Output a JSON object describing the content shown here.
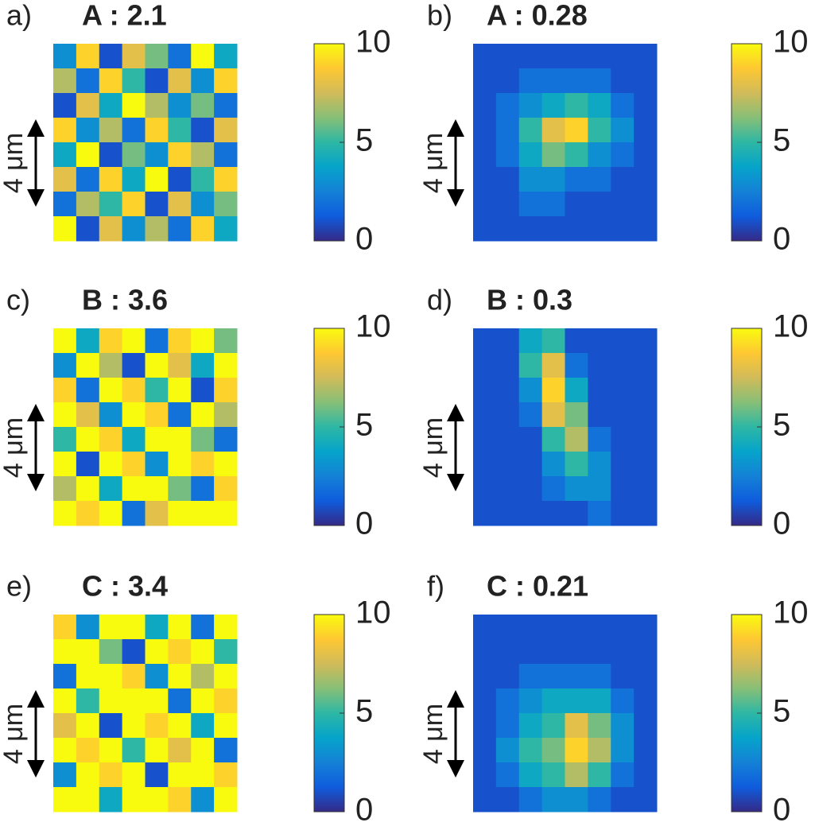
{
  "chart_data": [
    {
      "type": "heatmap",
      "panel_label": "a)",
      "title": "A : 2.1",
      "scale_label": "4 μm",
      "zlim": [
        0,
        10
      ],
      "zticks": [
        0,
        5,
        10
      ],
      "values": [
        [
          3,
          9,
          1,
          8,
          6,
          2,
          10,
          4
        ],
        [
          7,
          2,
          9,
          5,
          1,
          8,
          3,
          9
        ],
        [
          1,
          8,
          4,
          10,
          7,
          3,
          6,
          2
        ],
        [
          9,
          3,
          7,
          2,
          9,
          5,
          1,
          8
        ],
        [
          4,
          10,
          1,
          6,
          3,
          9,
          7,
          2
        ],
        [
          8,
          2,
          9,
          4,
          10,
          1,
          5,
          9
        ],
        [
          2,
          7,
          5,
          9,
          1,
          8,
          3,
          6
        ],
        [
          10,
          1,
          8,
          3,
          7,
          2,
          9,
          4
        ]
      ]
    },
    {
      "type": "heatmap",
      "panel_label": "b)",
      "title": "A : 0.28",
      "scale_label": "4 μm",
      "zlim": [
        0,
        10
      ],
      "zticks": [
        0,
        5,
        10
      ],
      "values": [
        [
          1,
          1,
          1,
          1,
          1,
          1,
          1,
          1
        ],
        [
          1,
          1,
          2,
          2,
          2,
          2,
          1,
          1
        ],
        [
          1,
          2,
          3,
          4,
          5,
          4,
          2,
          1
        ],
        [
          1,
          2,
          5,
          8,
          9,
          5,
          3,
          1
        ],
        [
          1,
          2,
          4,
          6,
          5,
          3,
          2,
          1
        ],
        [
          1,
          1,
          3,
          3,
          2,
          2,
          1,
          1
        ],
        [
          1,
          1,
          2,
          2,
          1,
          1,
          1,
          1
        ],
        [
          1,
          1,
          1,
          1,
          1,
          1,
          1,
          1
        ]
      ]
    },
    {
      "type": "heatmap",
      "panel_label": "c)",
      "title": "B : 3.6",
      "scale_label": "4 μm",
      "zlim": [
        0,
        10
      ],
      "zticks": [
        0,
        5,
        10
      ],
      "values": [
        [
          10,
          4,
          9,
          10,
          2,
          9,
          10,
          6
        ],
        [
          3,
          10,
          7,
          1,
          10,
          8,
          4,
          10
        ],
        [
          9,
          2,
          10,
          9,
          5,
          10,
          1,
          9
        ],
        [
          10,
          8,
          3,
          10,
          9,
          2,
          10,
          7
        ],
        [
          5,
          10,
          9,
          4,
          10,
          10,
          6,
          2
        ],
        [
          10,
          1,
          10,
          9,
          3,
          10,
          9,
          10
        ],
        [
          7,
          10,
          4,
          10,
          10,
          6,
          2,
          9
        ],
        [
          10,
          9,
          10,
          2,
          8,
          10,
          10,
          10
        ]
      ]
    },
    {
      "type": "heatmap",
      "panel_label": "d)",
      "title": "B : 0.3",
      "scale_label": "4 μm",
      "zlim": [
        0,
        10
      ],
      "zticks": [
        0,
        5,
        10
      ],
      "values": [
        [
          1,
          1,
          4,
          5,
          1,
          1,
          1,
          1
        ],
        [
          1,
          1,
          5,
          8,
          2,
          1,
          1,
          1
        ],
        [
          1,
          1,
          3,
          9,
          4,
          1,
          1,
          1
        ],
        [
          1,
          1,
          2,
          8,
          6,
          1,
          1,
          1
        ],
        [
          1,
          1,
          1,
          5,
          7,
          2,
          1,
          1
        ],
        [
          1,
          1,
          1,
          3,
          5,
          3,
          1,
          1
        ],
        [
          1,
          1,
          1,
          2,
          3,
          3,
          1,
          1
        ],
        [
          1,
          1,
          1,
          1,
          1,
          2,
          1,
          1
        ]
      ]
    },
    {
      "type": "heatmap",
      "panel_label": "e)",
      "title": "C : 3.4",
      "scale_label": "4 μm",
      "zlim": [
        0,
        10
      ],
      "zticks": [
        0,
        5,
        10
      ],
      "values": [
        [
          9,
          3,
          10,
          10,
          4,
          10,
          2,
          10
        ],
        [
          10,
          10,
          6,
          1,
          10,
          9,
          10,
          5
        ],
        [
          2,
          10,
          10,
          9,
          3,
          10,
          7,
          10
        ],
        [
          10,
          5,
          10,
          10,
          10,
          2,
          10,
          9
        ],
        [
          8,
          10,
          1,
          10,
          9,
          10,
          4,
          10
        ],
        [
          10,
          9,
          10,
          5,
          10,
          8,
          10,
          2
        ],
        [
          3,
          10,
          9,
          10,
          1,
          10,
          10,
          9
        ],
        [
          10,
          10,
          4,
          10,
          10,
          9,
          3,
          10
        ]
      ]
    },
    {
      "type": "heatmap",
      "panel_label": "f)",
      "title": "C : 0.21",
      "scale_label": "4 μm",
      "zlim": [
        0,
        10
      ],
      "zticks": [
        0,
        5,
        10
      ],
      "values": [
        [
          1,
          1,
          1,
          1,
          1,
          1,
          1,
          1
        ],
        [
          1,
          1,
          1,
          1,
          1,
          1,
          1,
          1
        ],
        [
          1,
          1,
          2,
          2,
          2,
          2,
          1,
          1
        ],
        [
          1,
          2,
          3,
          4,
          4,
          4,
          2,
          1
        ],
        [
          1,
          2,
          4,
          5,
          8,
          6,
          3,
          1
        ],
        [
          1,
          3,
          5,
          6,
          9,
          7,
          3,
          1
        ],
        [
          1,
          2,
          4,
          5,
          7,
          5,
          2,
          1
        ],
        [
          1,
          1,
          2,
          3,
          3,
          2,
          1,
          1
        ]
      ]
    }
  ],
  "colormap": [
    "#352a87",
    "#0f5cdd",
    "#1481d6",
    "#06a4ca",
    "#2eb7a4",
    "#87bf77",
    "#d1bb59",
    "#fec832",
    "#f9fb0e"
  ]
}
